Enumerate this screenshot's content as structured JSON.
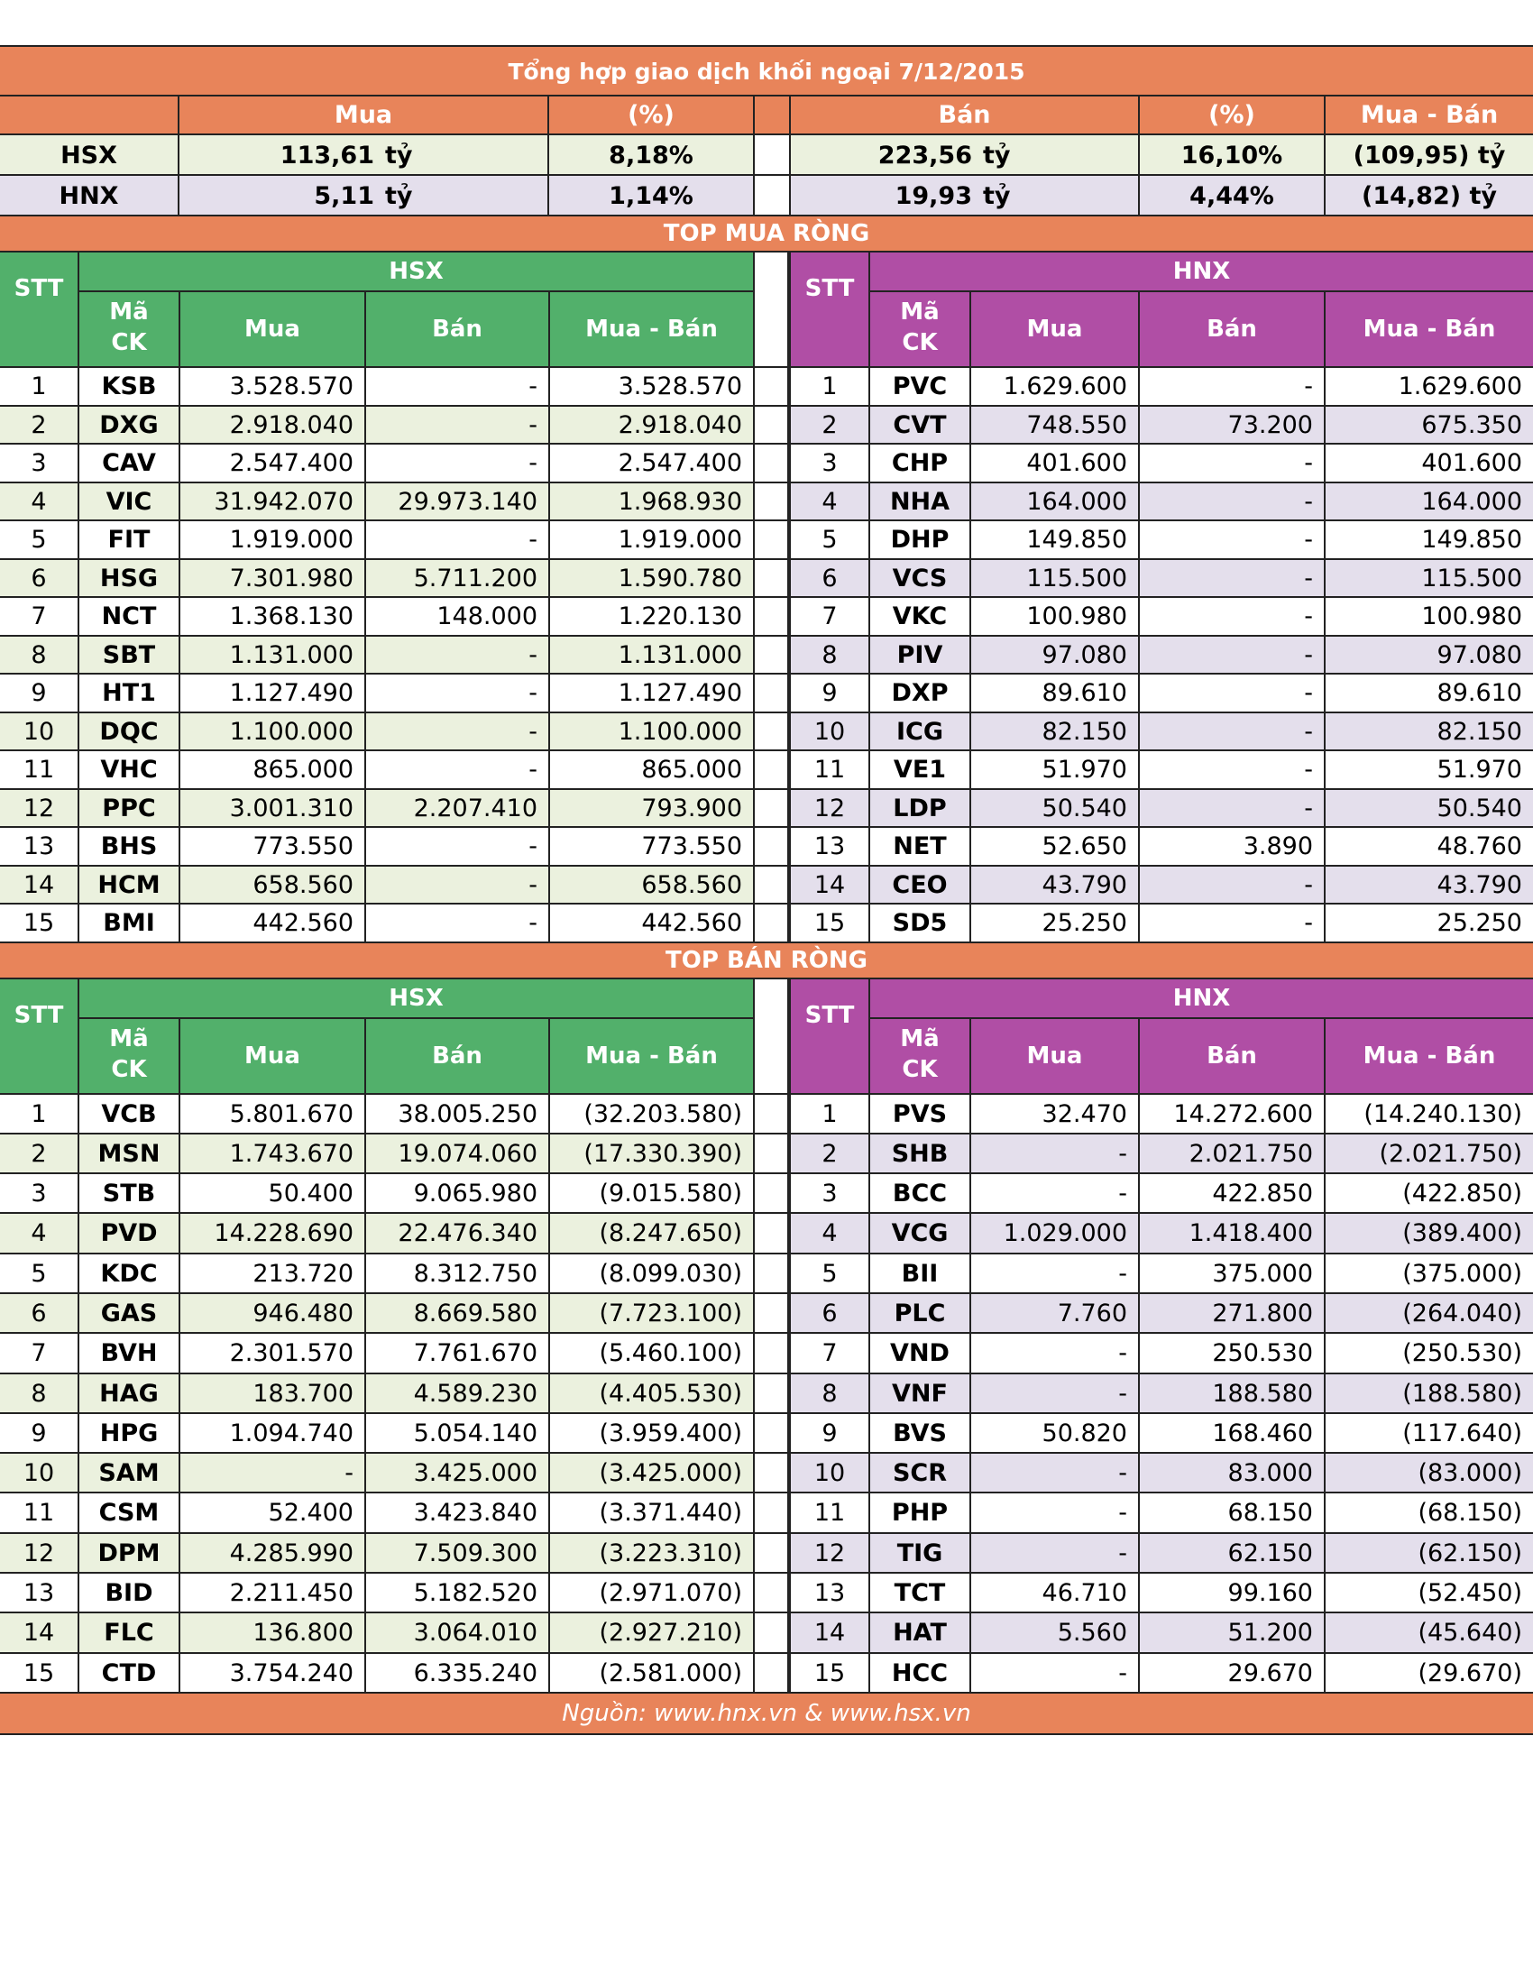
{
  "title": "Tổng hợp giao dịch khối ngoại 7/12/2015",
  "summary": {
    "headers": {
      "mua": "Mua",
      "pct1": "(%)",
      "ban": "Bán",
      "pct2": "(%)",
      "net": "Mua - Bán"
    },
    "rows": [
      {
        "exchange": "HSX",
        "mua": "113,61",
        "mua_unit": "tỷ",
        "mua_pct": "8,18%",
        "ban": "223,56",
        "ban_unit": "tỷ",
        "ban_pct": "16,10%",
        "net": "(109,95) tỷ"
      },
      {
        "exchange": "HNX",
        "mua": "5,11",
        "mua_unit": "tỷ",
        "mua_pct": "1,14%",
        "ban": "19,93",
        "ban_unit": "tỷ",
        "ban_pct": "4,44%",
        "net": "(14,82) tỷ"
      }
    ]
  },
  "columns": {
    "stt": "STT",
    "code_1": "Mã",
    "code_2": "CK",
    "mua": "Mua",
    "ban": "Bán",
    "net": "Mua - Bán",
    "hsx": "HSX",
    "hnx": "HNX"
  },
  "top_buy": {
    "title": "TOP MUA RÒNG",
    "hsx": [
      [
        "1",
        "KSB",
        "3.528.570",
        "-",
        "3.528.570"
      ],
      [
        "2",
        "DXG",
        "2.918.040",
        "-",
        "2.918.040"
      ],
      [
        "3",
        "CAV",
        "2.547.400",
        "-",
        "2.547.400"
      ],
      [
        "4",
        "VIC",
        "31.942.070",
        "29.973.140",
        "1.968.930"
      ],
      [
        "5",
        "FIT",
        "1.919.000",
        "-",
        "1.919.000"
      ],
      [
        "6",
        "HSG",
        "7.301.980",
        "5.711.200",
        "1.590.780"
      ],
      [
        "7",
        "NCT",
        "1.368.130",
        "148.000",
        "1.220.130"
      ],
      [
        "8",
        "SBT",
        "1.131.000",
        "-",
        "1.131.000"
      ],
      [
        "9",
        "HT1",
        "1.127.490",
        "-",
        "1.127.490"
      ],
      [
        "10",
        "DQC",
        "1.100.000",
        "-",
        "1.100.000"
      ],
      [
        "11",
        "VHC",
        "865.000",
        "-",
        "865.000"
      ],
      [
        "12",
        "PPC",
        "3.001.310",
        "2.207.410",
        "793.900"
      ],
      [
        "13",
        "BHS",
        "773.550",
        "-",
        "773.550"
      ],
      [
        "14",
        "HCM",
        "658.560",
        "-",
        "658.560"
      ],
      [
        "15",
        "BMI",
        "442.560",
        "-",
        "442.560"
      ]
    ],
    "hnx": [
      [
        "1",
        "PVC",
        "1.629.600",
        "-",
        "1.629.600"
      ],
      [
        "2",
        "CVT",
        "748.550",
        "73.200",
        "675.350"
      ],
      [
        "3",
        "CHP",
        "401.600",
        "-",
        "401.600"
      ],
      [
        "4",
        "NHA",
        "164.000",
        "-",
        "164.000"
      ],
      [
        "5",
        "DHP",
        "149.850",
        "-",
        "149.850"
      ],
      [
        "6",
        "VCS",
        "115.500",
        "-",
        "115.500"
      ],
      [
        "7",
        "VKC",
        "100.980",
        "-",
        "100.980"
      ],
      [
        "8",
        "PIV",
        "97.080",
        "-",
        "97.080"
      ],
      [
        "9",
        "DXP",
        "89.610",
        "-",
        "89.610"
      ],
      [
        "10",
        "ICG",
        "82.150",
        "-",
        "82.150"
      ],
      [
        "11",
        "VE1",
        "51.970",
        "-",
        "51.970"
      ],
      [
        "12",
        "LDP",
        "50.540",
        "-",
        "50.540"
      ],
      [
        "13",
        "NET",
        "52.650",
        "3.890",
        "48.760"
      ],
      [
        "14",
        "CEO",
        "43.790",
        "-",
        "43.790"
      ],
      [
        "15",
        "SD5",
        "25.250",
        "-",
        "25.250"
      ]
    ]
  },
  "top_sell": {
    "title": "TOP BÁN RÒNG",
    "hsx": [
      [
        "1",
        "VCB",
        "5.801.670",
        "38.005.250",
        "(32.203.580)"
      ],
      [
        "2",
        "MSN",
        "1.743.670",
        "19.074.060",
        "(17.330.390)"
      ],
      [
        "3",
        "STB",
        "50.400",
        "9.065.980",
        "(9.015.580)"
      ],
      [
        "4",
        "PVD",
        "14.228.690",
        "22.476.340",
        "(8.247.650)"
      ],
      [
        "5",
        "KDC",
        "213.720",
        "8.312.750",
        "(8.099.030)"
      ],
      [
        "6",
        "GAS",
        "946.480",
        "8.669.580",
        "(7.723.100)"
      ],
      [
        "7",
        "BVH",
        "2.301.570",
        "7.761.670",
        "(5.460.100)"
      ],
      [
        "8",
        "HAG",
        "183.700",
        "4.589.230",
        "(4.405.530)"
      ],
      [
        "9",
        "HPG",
        "1.094.740",
        "5.054.140",
        "(3.959.400)"
      ],
      [
        "10",
        "SAM",
        "-",
        "3.425.000",
        "(3.425.000)"
      ],
      [
        "11",
        "CSM",
        "52.400",
        "3.423.840",
        "(3.371.440)"
      ],
      [
        "12",
        "DPM",
        "4.285.990",
        "7.509.300",
        "(3.223.310)"
      ],
      [
        "13",
        "BID",
        "2.211.450",
        "5.182.520",
        "(2.971.070)"
      ],
      [
        "14",
        "FLC",
        "136.800",
        "3.064.010",
        "(2.927.210)"
      ],
      [
        "15",
        "CTD",
        "3.754.240",
        "6.335.240",
        "(2.581.000)"
      ]
    ],
    "hnx": [
      [
        "1",
        "PVS",
        "32.470",
        "14.272.600",
        "(14.240.130)"
      ],
      [
        "2",
        "SHB",
        "-",
        "2.021.750",
        "(2.021.750)"
      ],
      [
        "3",
        "BCC",
        "-",
        "422.850",
        "(422.850)"
      ],
      [
        "4",
        "VCG",
        "1.029.000",
        "1.418.400",
        "(389.400)"
      ],
      [
        "5",
        "BII",
        "-",
        "375.000",
        "(375.000)"
      ],
      [
        "6",
        "PLC",
        "7.760",
        "271.800",
        "(264.040)"
      ],
      [
        "7",
        "VND",
        "-",
        "250.530",
        "(250.530)"
      ],
      [
        "8",
        "VNF",
        "-",
        "188.580",
        "(188.580)"
      ],
      [
        "9",
        "BVS",
        "50.820",
        "168.460",
        "(117.640)"
      ],
      [
        "10",
        "SCR",
        "-",
        "83.000",
        "(83.000)"
      ],
      [
        "11",
        "PHP",
        "-",
        "68.150",
        "(68.150)"
      ],
      [
        "12",
        "TIG",
        "-",
        "62.150",
        "(62.150)"
      ],
      [
        "13",
        "TCT",
        "46.710",
        "99.160",
        "(52.450)"
      ],
      [
        "14",
        "HAT",
        "5.560",
        "51.200",
        "(45.640)"
      ],
      [
        "15",
        "HCC",
        "-",
        "29.670",
        "(29.670)"
      ]
    ]
  },
  "source": "Nguồn: www.hnx.vn   &   www.hsx.vn",
  "colors": {
    "orange": "#e8845a",
    "green": "#52b06b",
    "purple": "#b04ea5",
    "green_light": "#ebf1de",
    "purple_light": "#e4dfec"
  }
}
